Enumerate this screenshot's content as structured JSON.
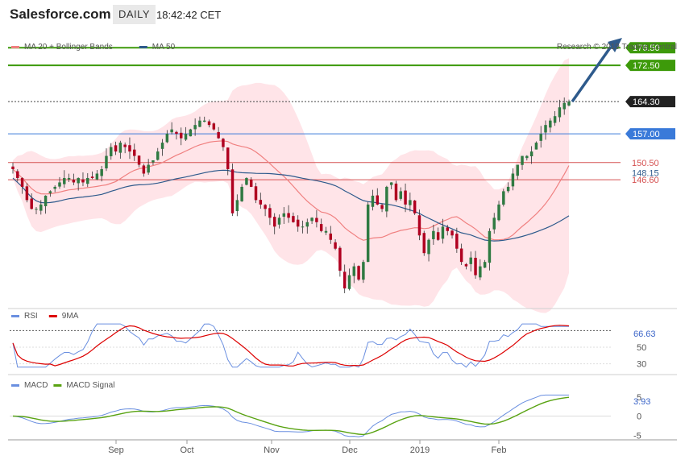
{
  "header": {
    "symbol": "Salesforce.com",
    "period": "DAILY",
    "time": "18:42:42 CET",
    "credit": "Research © 2019 Trading Central"
  },
  "colors": {
    "green": "#3d9a0a",
    "blue_level": "#3a7ad9",
    "red_level": "#d55050",
    "band_fill": "#ffe4e8",
    "ma20": "#f08080",
    "ma50": "#2e5a8c",
    "candle_up": "#2f7a42",
    "candle_down": "#b00020",
    "rsi": "#6a8fe0",
    "rsi_ma": "#dd0000",
    "macd": "#6a8fe0",
    "macd_signal": "#59a312",
    "arrow": "#2e5a8c"
  },
  "legend": {
    "price": [
      {
        "label": "MA 20 + Bollinger Bands",
        "color": "#f08080"
      },
      {
        "label": "MA 50",
        "color": "#2e5a8c"
      }
    ],
    "rsi": [
      {
        "label": "RSI",
        "color": "#6a8fe0"
      },
      {
        "label": "9MA",
        "color": "#dd0000"
      }
    ],
    "macd": [
      {
        "label": "MACD",
        "color": "#6a8fe0"
      },
      {
        "label": "MACD Signal",
        "color": "#59a312"
      }
    ]
  },
  "chart_data": {
    "type": "candlestick",
    "levels": [
      {
        "value": 176.5,
        "label": "176.50",
        "kind": "resistance",
        "color": "#3d9a0a"
      },
      {
        "value": 172.5,
        "label": "172.50",
        "kind": "resistance",
        "color": "#3d9a0a"
      },
      {
        "value": 164.3,
        "label": "164.30",
        "kind": "last",
        "color": "#222222"
      },
      {
        "value": 157.0,
        "label": "157.00",
        "kind": "pivot",
        "color": "#3a7ad9"
      },
      {
        "value": 150.5,
        "label": "150.50",
        "kind": "support",
        "color": "#d55050"
      },
      {
        "value": 148.15,
        "label": "148.15",
        "kind": "ma50",
        "color": "#2e5a8c"
      },
      {
        "value": 146.6,
        "label": "146.60",
        "kind": "support",
        "color": "#d55050"
      }
    ],
    "x_labels": [
      "Sep",
      "Oct",
      "Nov",
      "Dec",
      "2019",
      "Feb"
    ],
    "x_label_days": [
      35,
      56,
      79,
      104,
      120,
      144
    ],
    "total_days": 164,
    "price_ylim": [
      118,
      180
    ],
    "closes": [
      149,
      147,
      145,
      142,
      140,
      140,
      141,
      143,
      144,
      145,
      146,
      147,
      147,
      146,
      147,
      146,
      147,
      147,
      148,
      149,
      152,
      154,
      153,
      155,
      154,
      153,
      152,
      150,
      148,
      150,
      151,
      153,
      155,
      157,
      158,
      157,
      156,
      157,
      158,
      159,
      160,
      160,
      159,
      158,
      156,
      154,
      149,
      139,
      142,
      145,
      147,
      145,
      142,
      141,
      140,
      138,
      136,
      138,
      139,
      138,
      137,
      136,
      136,
      137,
      138,
      137,
      135,
      135,
      133,
      131,
      126,
      122,
      125,
      127,
      124,
      128,
      141,
      143,
      141,
      140,
      145,
      146,
      142,
      144,
      141,
      142,
      139,
      134,
      130,
      133,
      135,
      133,
      136,
      135,
      134,
      131,
      128,
      127,
      129,
      125,
      127,
      128,
      135,
      138,
      141,
      144,
      145,
      148,
      150,
      152,
      152,
      153,
      155,
      157,
      159,
      160,
      161,
      163,
      164,
      164.3
    ],
    "rsi": {
      "ylim": [
        20,
        80
      ],
      "ticks": [
        30,
        50
      ],
      "last": 66.63,
      "last_label": "66.63"
    },
    "macd": {
      "ylim": [
        -6,
        6
      ],
      "ticks": [
        -5,
        0,
        5
      ],
      "last": 3.93,
      "last_label": "3.93"
    }
  }
}
